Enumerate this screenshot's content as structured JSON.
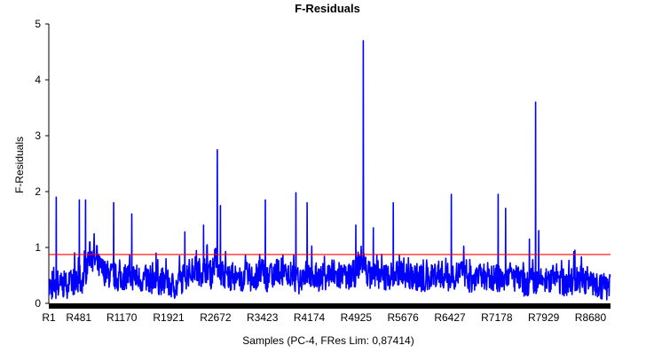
{
  "chart_data": {
    "type": "line",
    "title": "F-Residuals",
    "xlabel": "Samples (PC-4, FRes Lim: 0,87414)",
    "ylabel": "F-Residuals",
    "ylim": [
      0,
      5
    ],
    "yticks": [
      "0",
      "1",
      "2",
      "3",
      "4",
      "5"
    ],
    "xlim": [
      1,
      9000
    ],
    "xticks": [
      {
        "pos": 1,
        "label": "R1"
      },
      {
        "pos": 481,
        "label": "R481"
      },
      {
        "pos": 1170,
        "label": "R1170"
      },
      {
        "pos": 1921,
        "label": "R1921"
      },
      {
        "pos": 2672,
        "label": "R2672"
      },
      {
        "pos": 3423,
        "label": "R3423"
      },
      {
        "pos": 4174,
        "label": "R4174"
      },
      {
        "pos": 4925,
        "label": "R4925"
      },
      {
        "pos": 5676,
        "label": "R5676"
      },
      {
        "pos": 6427,
        "label": "R6427"
      },
      {
        "pos": 7178,
        "label": "R7178"
      },
      {
        "pos": 7929,
        "label": "R7929"
      },
      {
        "pos": 8680,
        "label": "R8680"
      }
    ],
    "limit": {
      "value": 0.87414,
      "color": "#ff0000"
    },
    "series": [
      {
        "color": "#0000ff",
        "x": [
          1,
          200,
          350,
          400,
          480,
          560,
          600,
          650,
          720,
          800,
          900,
          1000,
          1100,
          1170,
          1250,
          1350,
          1500,
          1600,
          1700,
          1800,
          1921,
          2050,
          2150,
          2250,
          2350,
          2450,
          2560,
          2600,
          2672,
          2760,
          2850,
          2950,
          3050,
          3150,
          3250,
          3330,
          3423,
          3500,
          3600,
          3700,
          3800,
          3900,
          4000,
          4100,
          4174,
          4250,
          4350,
          4450,
          4550,
          4650,
          4700,
          4780,
          4850,
          4925,
          5000,
          5080,
          5150,
          5250,
          5350,
          5450,
          5550,
          5676,
          5750,
          5850,
          5950,
          6050,
          6150,
          6250,
          6330,
          6427,
          6500,
          6600,
          6700,
          6800,
          6900,
          7000,
          7100,
          7178,
          7260,
          7350,
          7450,
          7550,
          7650,
          7750,
          7850,
          7929,
          8000,
          8100,
          8200,
          8300,
          8400,
          8500,
          8600,
          8680,
          8750,
          8850,
          8950
        ],
        "y": [
          0.3,
          0.32,
          0.35,
          0.4,
          0.35,
          0.45,
          0.6,
          0.9,
          0.8,
          0.65,
          0.55,
          0.5,
          0.45,
          0.45,
          0.5,
          0.48,
          0.42,
          0.45,
          0.38,
          0.4,
          0.35,
          0.3,
          0.45,
          0.55,
          0.6,
          0.55,
          0.65,
          0.5,
          0.8,
          0.55,
          0.45,
          0.5,
          0.4,
          0.5,
          0.45,
          0.5,
          0.55,
          0.45,
          0.5,
          0.6,
          0.5,
          0.45,
          0.4,
          0.55,
          0.5,
          0.5,
          0.45,
          0.5,
          0.55,
          0.45,
          0.5,
          0.45,
          0.5,
          0.55,
          0.8,
          0.6,
          0.5,
          0.55,
          0.45,
          0.5,
          0.5,
          0.6,
          0.45,
          0.5,
          0.45,
          0.4,
          0.5,
          0.55,
          0.5,
          0.45,
          0.5,
          0.55,
          0.45,
          0.4,
          0.45,
          0.5,
          0.45,
          0.45,
          0.4,
          0.55,
          0.45,
          0.4,
          0.35,
          0.4,
          0.35,
          0.45,
          0.35,
          0.5,
          0.4,
          0.35,
          0.4,
          0.45,
          0.4,
          0.35,
          0.35,
          0.3,
          0.3
        ]
      }
    ],
    "peaks": [
      {
        "x": 120,
        "y": 1.9
      },
      {
        "x": 490,
        "y": 1.85
      },
      {
        "x": 590,
        "y": 1.85
      },
      {
        "x": 1040,
        "y": 1.8
      },
      {
        "x": 1330,
        "y": 1.6
      },
      {
        "x": 1720,
        "y": 0.9
      },
      {
        "x": 2180,
        "y": 1.28
      },
      {
        "x": 2480,
        "y": 1.4
      },
      {
        "x": 2700,
        "y": 2.75
      },
      {
        "x": 2750,
        "y": 1.75
      },
      {
        "x": 3470,
        "y": 1.85
      },
      {
        "x": 3960,
        "y": 1.98
      },
      {
        "x": 4140,
        "y": 1.8
      },
      {
        "x": 4920,
        "y": 1.4
      },
      {
        "x": 5040,
        "y": 4.7
      },
      {
        "x": 5200,
        "y": 1.35
      },
      {
        "x": 5520,
        "y": 1.8
      },
      {
        "x": 6450,
        "y": 1.95
      },
      {
        "x": 7200,
        "y": 1.95
      },
      {
        "x": 7320,
        "y": 1.7
      },
      {
        "x": 7700,
        "y": 1.15
      },
      {
        "x": 7800,
        "y": 3.6
      },
      {
        "x": 7850,
        "y": 1.3
      },
      {
        "x": 8430,
        "y": 0.95
      }
    ]
  }
}
